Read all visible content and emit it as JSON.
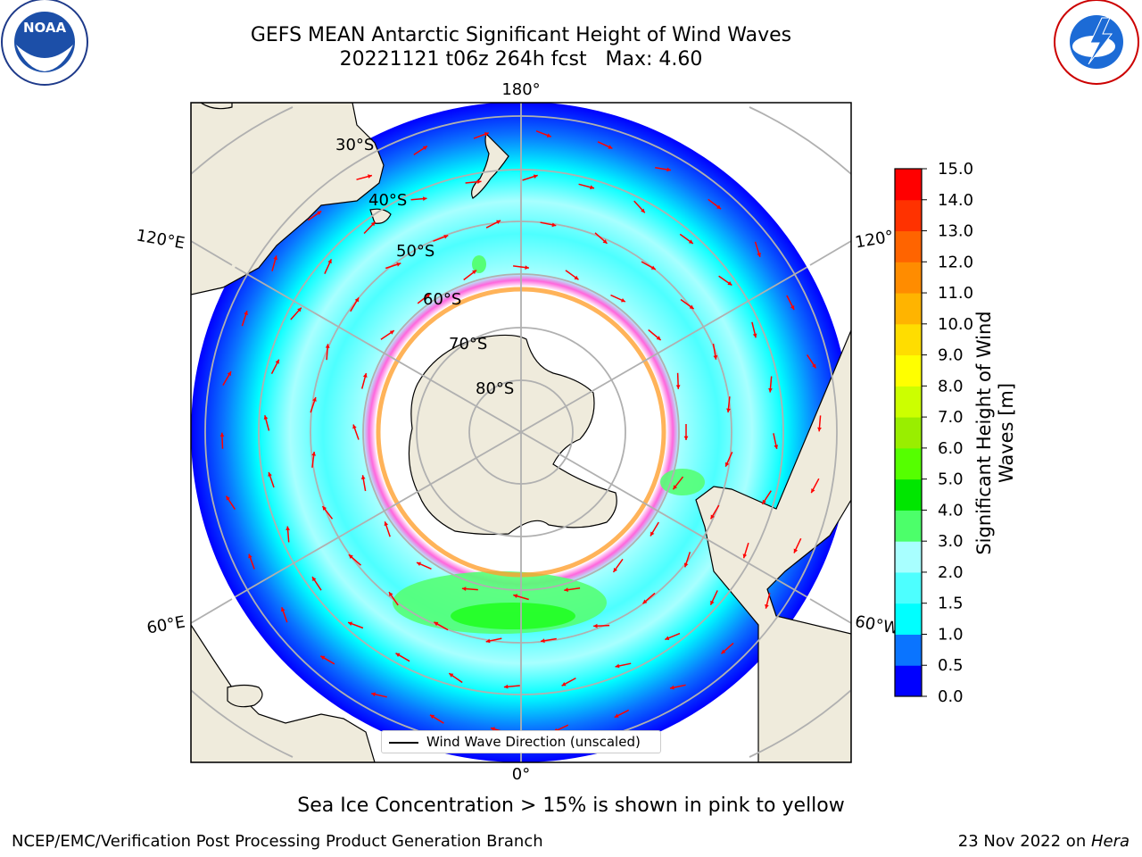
{
  "title": {
    "line1": "GEFS MEAN Antarctic Significant Height of Wind Waves",
    "line2": "20221121 t06z 264h fcst   Max: 4.60"
  },
  "map": {
    "projection": "south-polar-stereographic",
    "lon_labels": [
      "180°",
      "120°E",
      "120°",
      "60°E",
      "60°W",
      "0°"
    ],
    "lat_labels": [
      "30°S",
      "40°S",
      "50°S",
      "60°S",
      "70°S",
      "80°S"
    ],
    "legend_label": "Wind Wave Direction (unscaled)",
    "arrow_color": "#ff0000",
    "land_color": "#efebdc",
    "ocean_palette": [
      "#0000ff",
      "#0a74ff",
      "#00ffff",
      "#4dffff",
      "#a8ffff",
      "#55ff76",
      "#22ff22"
    ]
  },
  "colorbar": {
    "label_line1": "Significant Height of Wind",
    "label_line2": "Waves [m]",
    "ticks": [
      "0.0",
      "0.5",
      "1.0",
      "1.5",
      "2.0",
      "3.0",
      "4.0",
      "5.0",
      "6.0",
      "7.0",
      "8.0",
      "9.0",
      "10.0",
      "11.0",
      "12.0",
      "13.0",
      "14.0",
      "15.0"
    ],
    "colors": [
      "#0000ff",
      "#0a74ff",
      "#00ffff",
      "#4dffff",
      "#a8ffff",
      "#4cff6a",
      "#00e600",
      "#55ff00",
      "#99ee00",
      "#ccff00",
      "#ffff00",
      "#ffdd00",
      "#ffb400",
      "#ff8c00",
      "#ff6400",
      "#ff3200",
      "#ff0000"
    ]
  },
  "logos": {
    "left": "NOAA",
    "right": "NATIONAL WEATHER SERVICE"
  },
  "note": "Sea Ice Concentration > 15% is shown in pink to yellow",
  "footer": {
    "left": "NCEP/EMC/Verification Post Processing Product Generation Branch",
    "right_date": "23 Nov 2022 on ",
    "right_machine": "Hera"
  }
}
